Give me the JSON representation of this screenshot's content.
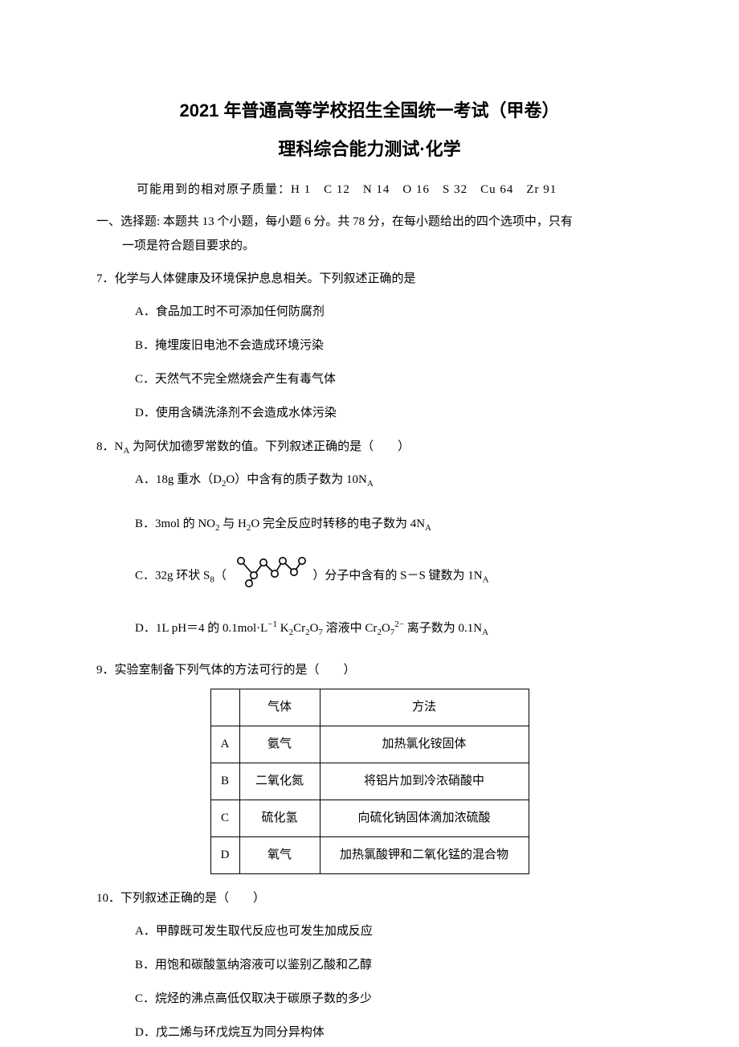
{
  "titles": {
    "main": "2021 年普通高等学校招生全国统一考试（甲卷）",
    "sub": "理科综合能力测试·化学"
  },
  "atomic_mass": "可能用到的相对原子质量：H 1　C 12　N 14　O 16　S 32　Cu 64　Zr 91",
  "section1": {
    "line1": "一、选择题: 本题共 13 个小题，每小题 6 分。共 78 分，在每小题给出的四个选项中，只有",
    "line2": "一项是符合题目要求的。"
  },
  "q7": {
    "stem": "7．化学与人体健康及环境保护息息相关。下列叙述正确的是",
    "A": "A．食品加工时不可添加任何防腐剂",
    "B": "B．掩埋废旧电池不会造成环境污染",
    "C": "C．天然气不完全燃烧会产生有毒气体",
    "D": "D．使用含磷洗涤剂不会造成水体污染"
  },
  "q8": {
    "num": "8．",
    "stem_pre": "N",
    "stem_post": " 为阿伏加德罗常数的值。下列叙述正确的是（　　）",
    "A_pre": "A．18g 重水（D",
    "A_mid": "O）中含有的质子数为 10N",
    "B_pre": "B．3mol 的 NO",
    "B_mid1": " 与 H",
    "B_mid2": "O 完全反应时转移的电子数为 4N",
    "C_pre": "C．32g 环状 S",
    "C_mid": "（",
    "C_post1": "）分子中含有的 S－S 键数为 1N",
    "D_pre": "D．1L pH＝4 的 0.1mol·L",
    "D_mid1": " K",
    "D_mid2": "Cr",
    "D_mid3": "O",
    "D_mid4": " 溶液中 Cr",
    "D_mid5": "O",
    "D_post": " 离子数为 0.1N"
  },
  "q9": {
    "stem": "9．实验室制备下列气体的方法可行的是（　　）",
    "table": {
      "header": {
        "gas": "气体",
        "method": "方法"
      },
      "rows": [
        {
          "idx": "A",
          "gas": "氨气",
          "method": "加热氯化铵固体"
        },
        {
          "idx": "B",
          "gas": "二氧化氮",
          "method": "将铝片加到冷浓硝酸中"
        },
        {
          "idx": "C",
          "gas": "硫化氢",
          "method": "向硫化钠固体滴加浓硫酸"
        },
        {
          "idx": "D",
          "gas": "氧气",
          "method": "加热氯酸钾和二氧化锰的混合物"
        }
      ]
    }
  },
  "q10": {
    "stem": "10．下列叙述正确的是（　　）",
    "A": "A．甲醇既可发生取代反应也可发生加成反应",
    "B": "B．用饱和碳酸氢纳溶液可以鉴别乙酸和乙醇",
    "C": "C．烷烃的沸点高低仅取决于碳原子数的多少",
    "D": "D．戊二烯与环戊烷互为同分异构体"
  },
  "colors": {
    "text": "#000000",
    "background": "#ffffff",
    "border": "#000000"
  },
  "ring_svg": {
    "width": 100,
    "height": 44,
    "stroke": "#000000",
    "stroke_width": 1.6,
    "fill": "#ffffff",
    "r": 4.2,
    "points": [
      {
        "x": 14,
        "y": 10
      },
      {
        "x": 30,
        "y": 28
      },
      {
        "x": 42,
        "y": 12
      },
      {
        "x": 56,
        "y": 26
      },
      {
        "x": 66,
        "y": 10
      },
      {
        "x": 80,
        "y": 24
      },
      {
        "x": 90,
        "y": 10
      },
      {
        "x": 24,
        "y": 38
      }
    ]
  }
}
